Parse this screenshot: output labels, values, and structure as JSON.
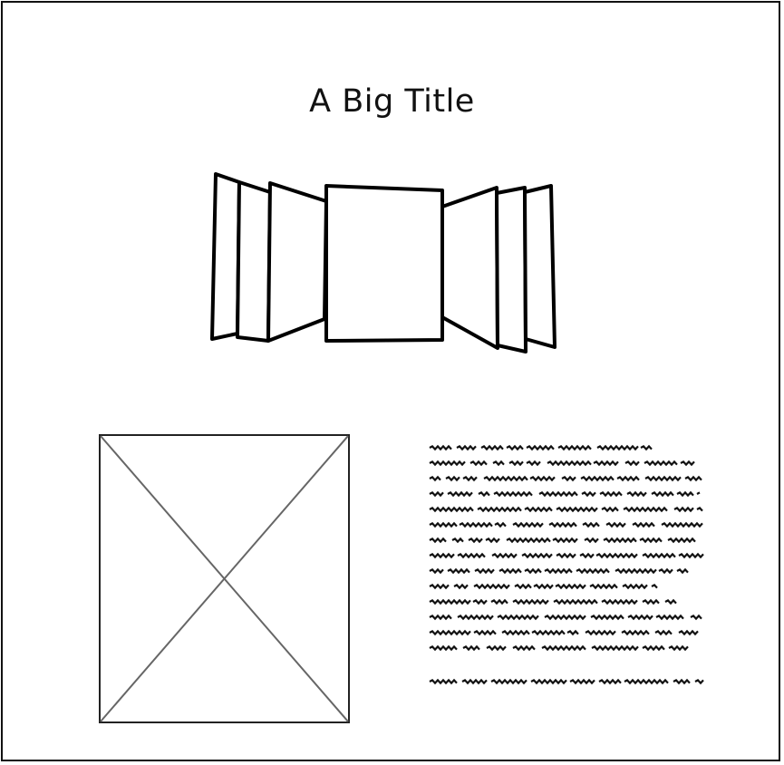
{
  "wireframe": {
    "title": "A Big Title",
    "cover_flow": {
      "panel_count": 7,
      "selected_index": 3
    },
    "image_placeholder": {
      "kind": "image-placeholder"
    },
    "text_block": {
      "kind": "scribble-text",
      "paragraph_lines": 14,
      "trailing_lines": 1
    }
  }
}
